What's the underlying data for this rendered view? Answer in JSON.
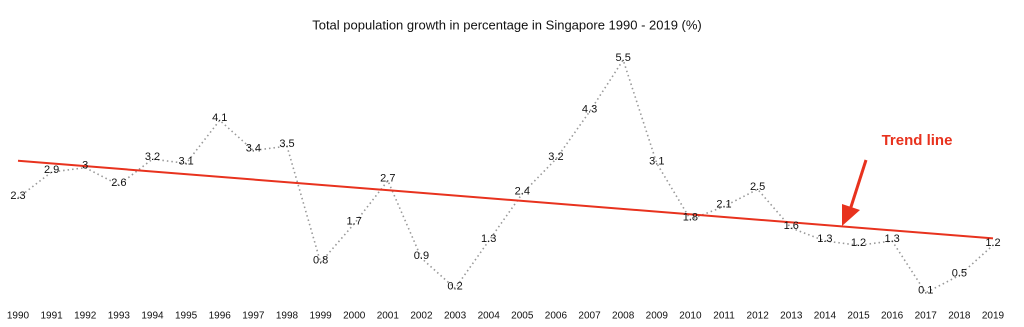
{
  "chart_data": {
    "type": "line",
    "title": "Total population growth in percentage in Singapore 1990 - 2019 (%)",
    "x": [
      1990,
      1991,
      1992,
      1993,
      1994,
      1995,
      1996,
      1997,
      1998,
      1999,
      2000,
      2001,
      2002,
      2003,
      2004,
      2005,
      2006,
      2007,
      2008,
      2009,
      2010,
      2011,
      2012,
      2013,
      2014,
      2015,
      2016,
      2017,
      2018,
      2019
    ],
    "series": [
      {
        "color": "#999999",
        "values": [
          2.3,
          2.9,
          3,
          2.6,
          3.2,
          3.1,
          4.1,
          3.4,
          3.5,
          0.8,
          1.7,
          2.7,
          0.9,
          0.2,
          1.3,
          2.4,
          3.2,
          4.3,
          5.5,
          3.1,
          1.8,
          2.1,
          2.5,
          1.6,
          1.3,
          1.2,
          1.3,
          0.1,
          0.5,
          1.2
        ]
      }
    ],
    "trend_line": {
      "color": "#e8321e",
      "annotation": "Trend line"
    }
  }
}
